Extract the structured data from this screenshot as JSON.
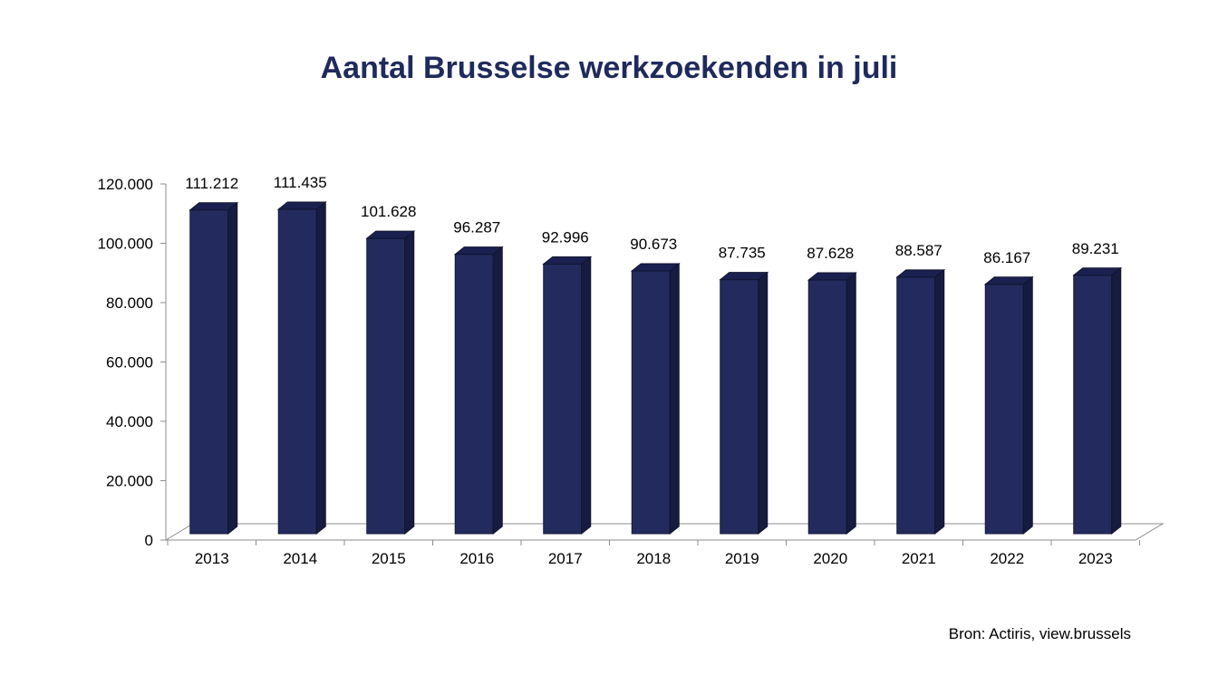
{
  "chart_data": {
    "type": "bar",
    "title": "Aantal Brusselse werkzoekenden in juli",
    "categories": [
      "2013",
      "2014",
      "2015",
      "2016",
      "2017",
      "2018",
      "2019",
      "2020",
      "2021",
      "2022",
      "2023"
    ],
    "values": [
      111212,
      111435,
      101628,
      96287,
      92996,
      90673,
      87735,
      87628,
      88587,
      86167,
      89231
    ],
    "value_labels": [
      "111.212",
      "111.435",
      "101.628",
      "96.287",
      "92.996",
      "90.673",
      "87.735",
      "87.628",
      "88.587",
      "86.167",
      "89.231"
    ],
    "ylim": [
      0,
      120000
    ],
    "yticks": [
      0,
      20000,
      40000,
      60000,
      80000,
      100000,
      120000
    ],
    "ytick_labels": [
      "0",
      "20.000",
      "40.000",
      "60.000",
      "80.000",
      "100.000",
      "120.000"
    ],
    "xlabel": "",
    "ylabel": "",
    "grid": false,
    "legend": "none",
    "style": "3d-column",
    "bar_color": "#232B5E",
    "bar_side_color": "#161C40",
    "bar_top_color": "#1A2150"
  },
  "source": "Bron: Actiris, view.brussels"
}
